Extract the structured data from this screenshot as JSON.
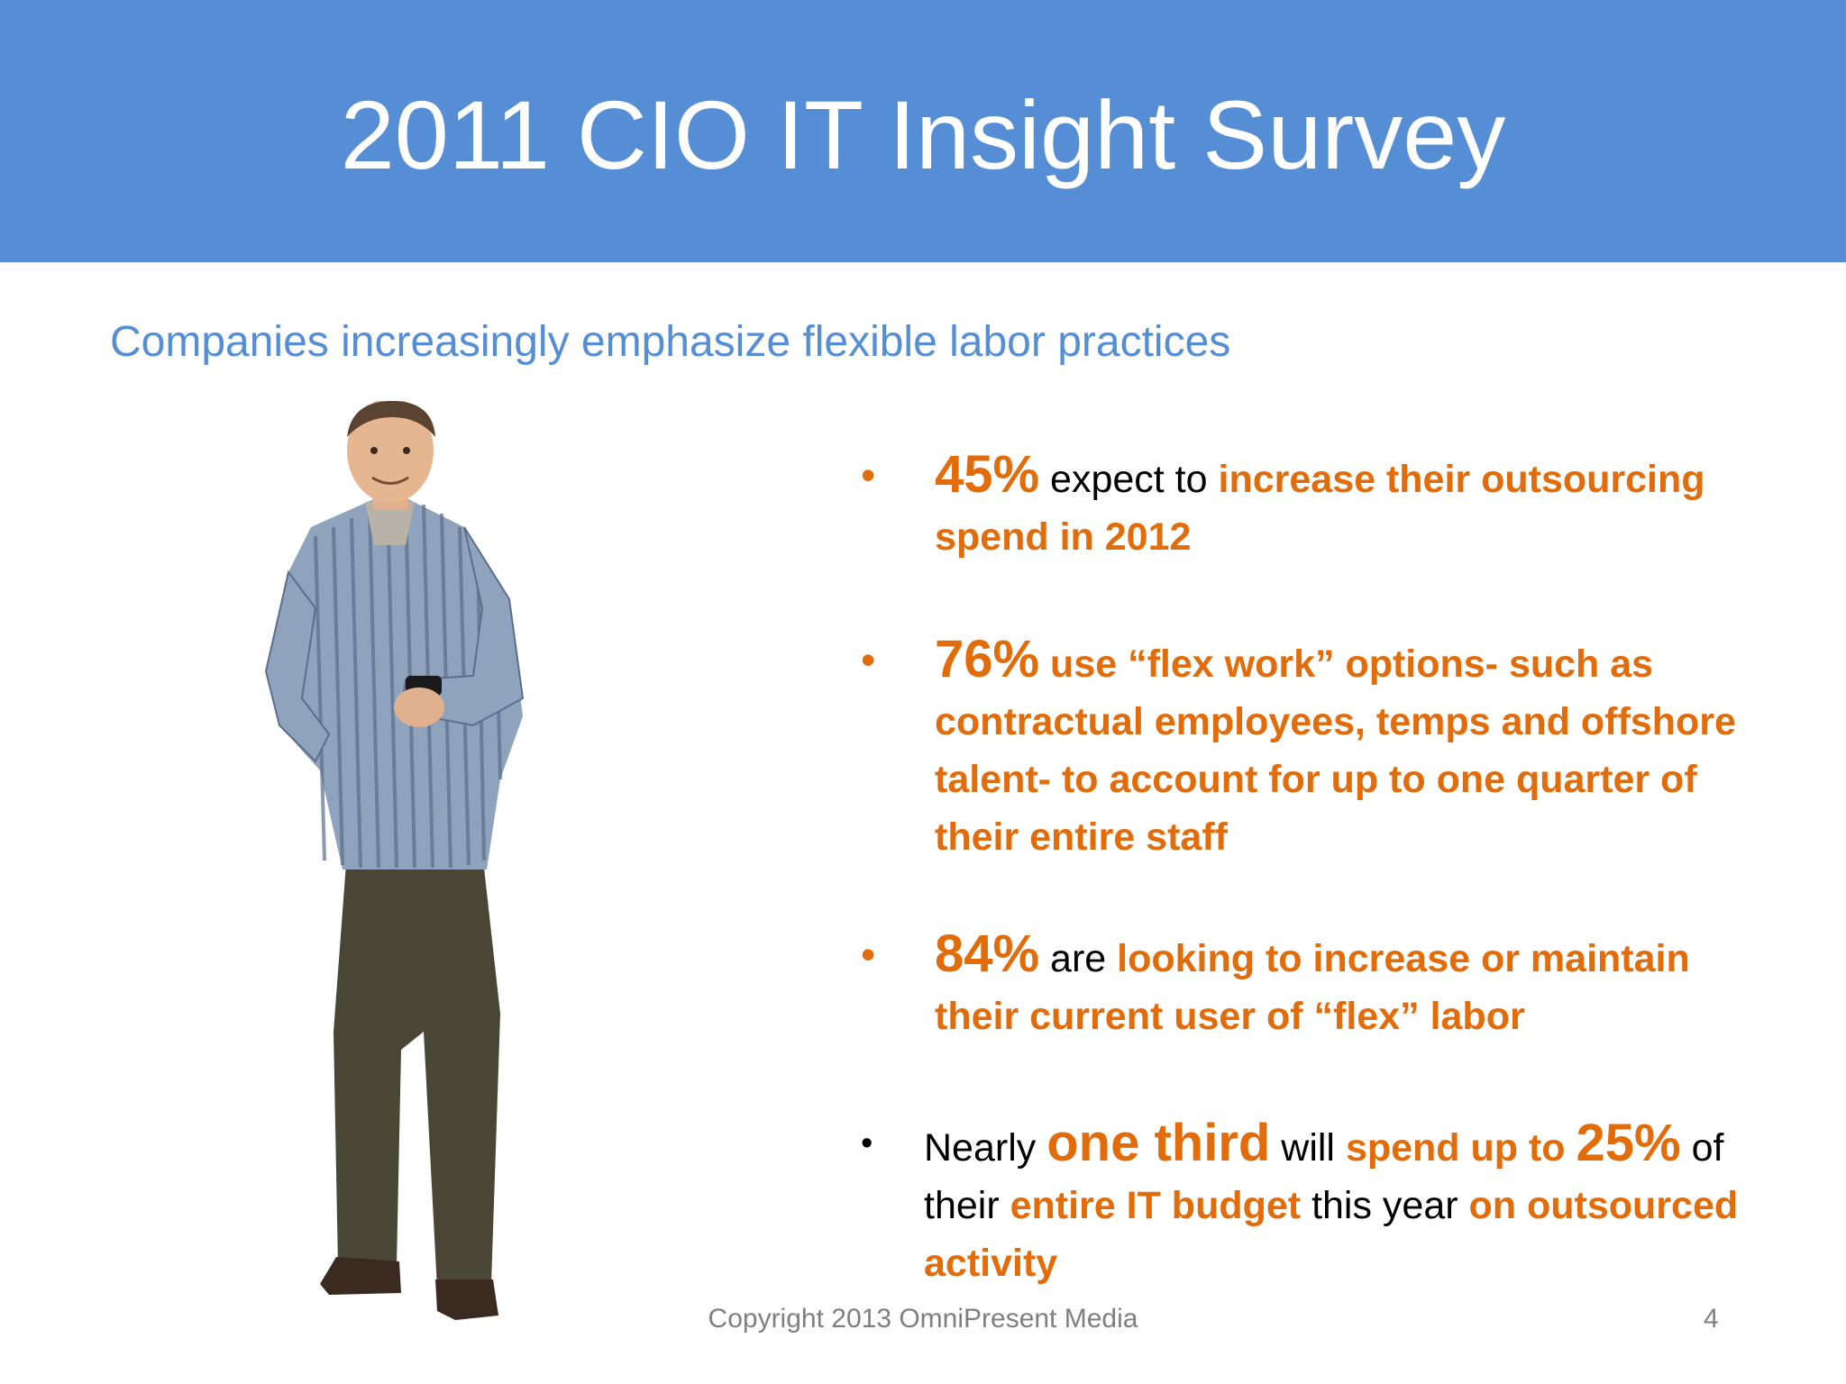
{
  "slide": {
    "title": "2011 CIO IT Insight Survey",
    "subtitle": "Companies increasingly emphasize flexible labor practices",
    "footer": "Copyright 2013 OmniPresent Media",
    "page_number": "4"
  },
  "bullets": [
    {
      "dot": "•",
      "stat": "45%",
      "t1": "expect to",
      "t2": "increase their outsourcing spend in 2012"
    },
    {
      "dot": "•",
      "stat": "76%",
      "t1": "use “flex work” options- such as contractual employees, temps and offshore talent- to account for up to one quarter of their entire staff"
    },
    {
      "dot": "•",
      "stat": "84%",
      "t1": "are",
      "t2": "looking to increase or maintain their current user of “flex” labor"
    },
    {
      "dot": "•",
      "t1": "Nearly",
      "stat": "one third",
      "t2": "will",
      "t3": "spend up to",
      "stat2": "25%",
      "t4": "of their",
      "t5": "entire IT budget",
      "t6": "this year",
      "t7": "on outsourced activity"
    }
  ],
  "colors": {
    "header": "#558ed5",
    "accent": "#e36c0a",
    "subtitle": "#558ed5"
  }
}
